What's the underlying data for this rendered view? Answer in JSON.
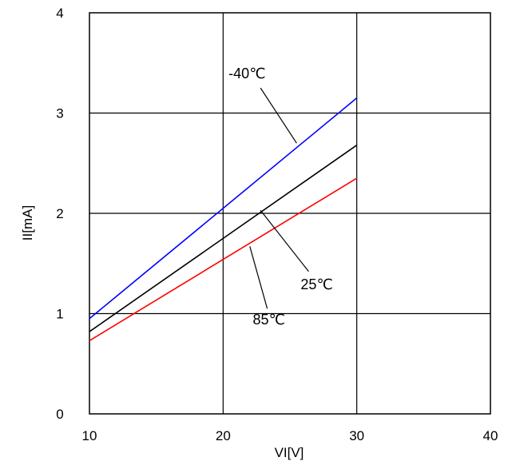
{
  "chart_data": {
    "type": "line",
    "xlabel": "VI[V]",
    "ylabel": "II[mA]",
    "xlim": [
      10,
      40
    ],
    "ylim": [
      0,
      4
    ],
    "xticks": [
      10,
      20,
      30,
      40
    ],
    "yticks": [
      0,
      1,
      2,
      3,
      4
    ],
    "grid": true,
    "series": [
      {
        "name": "-40℃",
        "color": "#0000ff",
        "x": [
          10,
          30
        ],
        "y": [
          0.95,
          3.15
        ]
      },
      {
        "name": "25℃",
        "color": "#000000",
        "x": [
          10,
          30
        ],
        "y": [
          0.82,
          2.68
        ]
      },
      {
        "name": "85℃",
        "color": "#ff0000",
        "x": [
          10,
          30
        ],
        "y": [
          0.73,
          2.35
        ]
      }
    ],
    "annotations": [
      {
        "text": "-40℃",
        "series": 0,
        "point_x": 25.5,
        "point_y": 2.7,
        "label_x": 22.8,
        "label_y": 3.25
      },
      {
        "text": "25℃",
        "series": 1,
        "point_x": 22.8,
        "point_y": 2.03,
        "label_x": 26.4,
        "label_y": 1.42
      },
      {
        "text": "85℃",
        "series": 2,
        "point_x": 22.0,
        "point_y": 1.67,
        "label_x": 23.3,
        "label_y": 1.05
      }
    ]
  }
}
